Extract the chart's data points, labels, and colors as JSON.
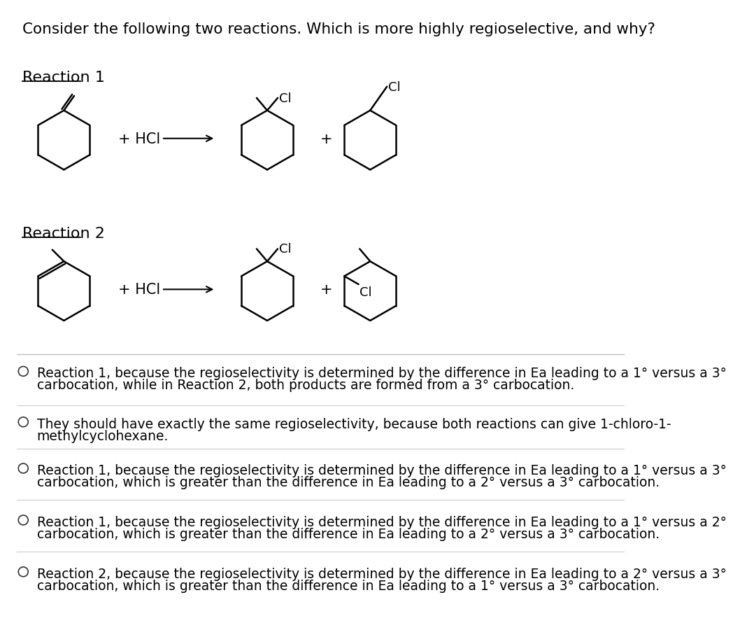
{
  "title": "Consider the following two reactions. Which is more highly regioselective, and why?",
  "reaction1_label": "Reaction 1",
  "reaction2_label": "Reaction 2",
  "hcl": "+ HCl",
  "plus": "+",
  "cl": "Cl",
  "bg_color": "#ffffff",
  "text_color": "#000000",
  "options": [
    "Reaction 1, because the regioselectivity is determined by the difference in Eₐ leading to a 1° versus a 3°\ncarbocation, while in Reaction 2, both products are formed from a 3° carbocation.",
    "They should have exactly the same regioselectivity, because both reactions can give 1-chloro-1-\nmethylcyclohexane.",
    "Reaction 1, because the regioselectivity is determined by the difference in Eₐ leading to a 1° versus a 3°\ncarbocation, which is greater than the difference in Eₐ leading to a 2° versus a 3° carbocation.",
    "Reaction 1, because the regioselectivity is determined by the difference in Eₐ leading to a 1° versus a 2°\ncarbocation, which is greater than the difference in Eₐ leading to a 2° versus a 3° carbocation.",
    "Reaction 2, because the regioselectivity is determined by the difference in Eₐ leading to a 2° versus a 3°\ncarbocation, which is greater than the difference in Eₐ leading to a 1° versus a 3° carbocation."
  ]
}
